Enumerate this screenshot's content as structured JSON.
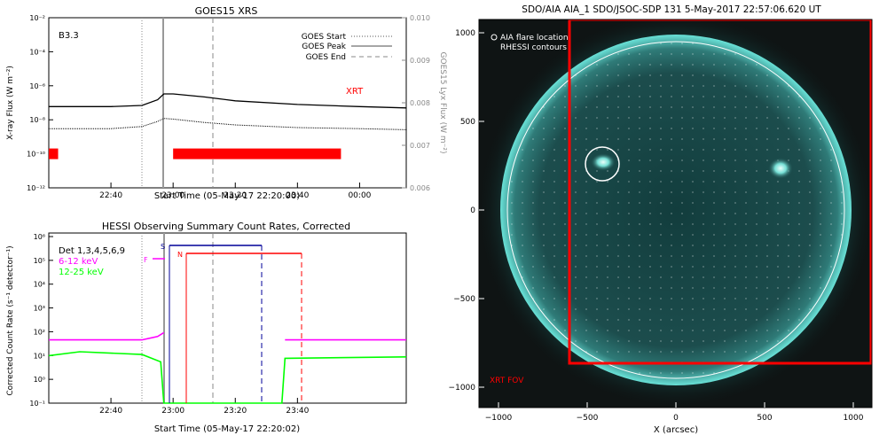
{
  "colors": {
    "xrt": "#ff0000",
    "rhessi_magenta": "#ff00ff",
    "rhessi_green": "#00ff00",
    "rhessi_blue": "#000099",
    "sun_disk": "#0e3a3a",
    "limb": "#40e0d0"
  },
  "goes": {
    "title": "GOES15 XRS",
    "class_label": "B3.3",
    "ylabel_left": "X-ray Flux (W m⁻²)",
    "ylabel_right": "GOES15 Lyx Flux (W m⁻²)",
    "xlabel": "Start Time (05-May-17 22:20:00)",
    "xrt_label": "XRT",
    "legend": [
      "GOES Start",
      "GOES Peak",
      "GOES End"
    ],
    "y_ticks": [
      "10⁻²",
      "10⁻⁴",
      "10⁻⁶",
      "10⁻⁸",
      "10⁻¹⁰",
      "10⁻¹²"
    ],
    "y2_ticks": [
      "0.010",
      "0.009",
      "0.008",
      "0.007",
      "0.006"
    ],
    "x_ticks": [
      "22:40",
      "23:00",
      "23:20",
      "23:40",
      "00:00"
    ]
  },
  "hessi": {
    "title": "HESSI Observing Summary Count Rates, Corrected",
    "ylabel": "Corrected Count Rate (s⁻¹ detector⁻¹)",
    "xlabel": "Start Time (05-May-17 22:20:02)",
    "legend": [
      "Det 1,3,4,5,6,9",
      "6-12 keV",
      "12-25 keV"
    ],
    "y_ticks": [
      "10⁶",
      "10⁵",
      "10⁴",
      "10³",
      "10²",
      "10¹",
      "10⁰",
      "10⁻¹"
    ],
    "x_ticks": [
      "22:40",
      "23:00",
      "23:20",
      "23:40"
    ],
    "flags": [
      "S",
      "N",
      "F"
    ]
  },
  "aia": {
    "title": "SDO/AIA AIA_1 SDO/JSOC-SDP 131  5-May-2017 22:57:06.620 UT",
    "legend": [
      "AIA flare location",
      "RHESSI contours"
    ],
    "fov_label": "XRT FOV",
    "xlabel": "X (arcsec)",
    "x_ticks": [
      "−1000",
      "−500",
      "0",
      "500",
      "1000"
    ],
    "y_ticks": [
      "1000",
      "500",
      "0",
      "−500",
      "−1000"
    ]
  },
  "chart_data": [
    {
      "type": "line",
      "title": "GOES15 XRS",
      "xlabel": "Start Time (05-May-17 22:20:00)",
      "ylabel": "X-ray Flux (W m⁻²)",
      "ylabel_right": "GOES15 Lyx Flux (W m⁻²)",
      "y_scale": "log",
      "ylim": [
        1e-12,
        0.01
      ],
      "y2lim": [
        0.006,
        0.01
      ],
      "xlim_minutes_from_22_20": [
        0,
        115
      ],
      "events": {
        "GOES Start": "22:51",
        "GOES Peak": "22:57",
        "GOES End": "23:12"
      },
      "annotation": "B3.3",
      "series": [
        {
          "name": "long",
          "x": [
            "22:20",
            "22:40",
            "22:50",
            "22:55",
            "22:57",
            "23:00",
            "23:10",
            "23:20",
            "23:40",
            "00:00",
            "00:15"
          ],
          "y": [
            6e-08,
            6e-08,
            7e-08,
            1.5e-07,
            3.3e-07,
            3.3e-07,
            2.2e-07,
            1.3e-07,
            8e-08,
            6e-08,
            5e-08
          ]
        },
        {
          "name": "short",
          "x": [
            "22:20",
            "22:40",
            "22:50",
            "22:55",
            "22:57",
            "23:00",
            "23:10",
            "23:20",
            "23:40",
            "00:00",
            "00:15"
          ],
          "y": [
            3e-09,
            3e-09,
            4e-09,
            8e-09,
            1.2e-08,
            1.1e-08,
            7e-09,
            5e-09,
            3.5e-09,
            3e-09,
            2.6e-09
          ]
        }
      ],
      "xrt_intervals": [
        [
          "22:20",
          "22:23"
        ],
        [
          "23:00",
          "23:54"
        ]
      ]
    },
    {
      "type": "line",
      "title": "HESSI Observing Summary Count Rates, Corrected",
      "xlabel": "Start Time (05-May-17 22:20:02)",
      "ylabel": "Corrected Count Rate (s⁻¹ detector⁻¹)",
      "y_scale": "log",
      "ylim": [
        0.1,
        1000000.0
      ],
      "series": [
        {
          "name": "6-12 keV",
          "x": [
            "22:20",
            "22:50",
            "22:55",
            "22:57",
            "22:58",
            "23:35",
            "23:36",
            "00:15"
          ],
          "y": [
            40,
            40,
            55,
            80,
            null,
            null,
            40,
            40
          ]
        },
        {
          "name": "12-25 keV",
          "x": [
            "22:20",
            "22:30",
            "22:50",
            "22:56",
            "22:57",
            "23:35",
            "23:36",
            "00:15"
          ],
          "y": [
            9,
            13,
            10,
            5,
            0.1,
            0.1,
            7,
            8
          ]
        }
      ],
      "flags": {
        "S": [
          "22:57",
          "23:27"
        ],
        "N": [
          "23:03",
          "23:39"
        ],
        "F": [
          "22:54",
          "22:57"
        ]
      }
    }
  ]
}
